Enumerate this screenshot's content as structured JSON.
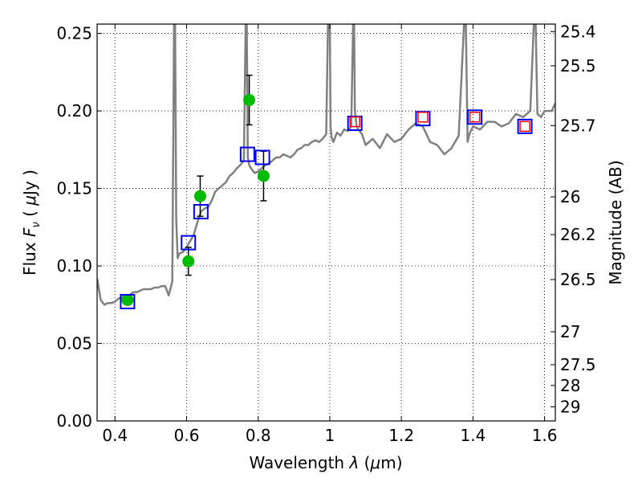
{
  "chart_data": {
    "type": "scatter",
    "title": "",
    "xlabel": "Wavelength  λ (μm)",
    "ylabel": "Flux  F_ν  ( μJy )",
    "ylabel_parts": {
      "prefix": "Flux  ",
      "symbol": "F",
      "subscript": "ν",
      "unit_open": "  ( ",
      "mu": "μ",
      "unit_rest": "Jy )"
    },
    "xlabel_parts": {
      "prefix": "Wavelength  ",
      "symbol": "λ",
      "unit_open": " (",
      "mu": "μ",
      "unit_rest": "m)"
    },
    "y2label": "Magnitude (AB)",
    "xlim": [
      0.35,
      1.63
    ],
    "ylim": [
      0.0,
      0.256
    ],
    "grid": true,
    "x_ticks": [
      {
        "value": 0.4,
        "label": "0.4"
      },
      {
        "value": 0.6,
        "label": "0.6"
      },
      {
        "value": 0.8,
        "label": "0.8"
      },
      {
        "value": 1.0,
        "label": "1"
      },
      {
        "value": 1.2,
        "label": "1.2"
      },
      {
        "value": 1.4,
        "label": "1.4"
      },
      {
        "value": 1.6,
        "label": "1.6"
      }
    ],
    "y_ticks": [
      {
        "value": 0.0,
        "label": "0.00"
      },
      {
        "value": 0.05,
        "label": "0.05"
      },
      {
        "value": 0.1,
        "label": "0.10"
      },
      {
        "value": 0.15,
        "label": "0.15"
      },
      {
        "value": 0.2,
        "label": "0.20"
      },
      {
        "value": 0.25,
        "label": "0.25"
      }
    ],
    "y2_ticks": [
      {
        "value": 25.4,
        "label": "25.4"
      },
      {
        "value": 25.5,
        "label": "25.5"
      },
      {
        "value": 25.7,
        "label": "25.7"
      },
      {
        "value": 26.0,
        "label": "26"
      },
      {
        "value": 26.2,
        "label": "26.2"
      },
      {
        "value": 26.5,
        "label": "26.5"
      },
      {
        "value": 27.0,
        "label": "27"
      },
      {
        "value": 27.5,
        "label": "27.5"
      },
      {
        "value": 28.0,
        "label": "28"
      },
      {
        "value": 29.0,
        "label": "29"
      }
    ],
    "series": [
      {
        "kind": "line",
        "color": "#808080",
        "x": [
          0.35,
          0.36,
          0.37,
          0.38,
          0.39,
          0.4,
          0.41,
          0.42,
          0.43,
          0.44,
          0.45,
          0.46,
          0.47,
          0.48,
          0.49,
          0.5,
          0.51,
          0.52,
          0.53,
          0.54,
          0.55,
          0.56,
          0.565,
          0.568,
          0.571,
          0.575,
          0.58,
          0.59,
          0.6,
          0.61,
          0.62,
          0.63,
          0.64,
          0.65,
          0.66,
          0.67,
          0.68,
          0.69,
          0.7,
          0.71,
          0.72,
          0.73,
          0.74,
          0.75,
          0.76,
          0.765,
          0.768,
          0.771,
          0.775,
          0.78,
          0.79,
          0.8,
          0.81,
          0.82,
          0.83,
          0.84,
          0.85,
          0.86,
          0.87,
          0.88,
          0.89,
          0.9,
          0.91,
          0.92,
          0.93,
          0.94,
          0.95,
          0.96,
          0.97,
          0.98,
          0.99,
          0.995,
          0.998,
          1.0,
          1.002,
          1.005,
          1.01,
          1.02,
          1.03,
          1.04,
          1.05,
          1.06,
          1.065,
          1.068,
          1.07,
          1.075,
          1.08,
          1.09,
          1.1,
          1.12,
          1.14,
          1.16,
          1.18,
          1.2,
          1.22,
          1.24,
          1.26,
          1.28,
          1.3,
          1.32,
          1.34,
          1.36,
          1.375,
          1.38,
          1.385,
          1.39,
          1.4,
          1.42,
          1.44,
          1.46,
          1.48,
          1.5,
          1.52,
          1.54,
          1.56,
          1.57,
          1.575,
          1.58,
          1.59,
          1.6,
          1.61,
          1.62,
          1.63
        ],
        "y": [
          0.092,
          0.078,
          0.075,
          0.076,
          0.076,
          0.077,
          0.079,
          0.08,
          0.08,
          0.081,
          0.083,
          0.083,
          0.084,
          0.085,
          0.085,
          0.085,
          0.086,
          0.086,
          0.087,
          0.087,
          0.081,
          0.09,
          0.256,
          0.256,
          0.13,
          0.105,
          0.108,
          0.109,
          0.112,
          0.116,
          0.12,
          0.128,
          0.135,
          0.137,
          0.138,
          0.142,
          0.148,
          0.15,
          0.152,
          0.154,
          0.158,
          0.16,
          0.163,
          0.165,
          0.168,
          0.256,
          0.256,
          0.17,
          0.165,
          0.163,
          0.16,
          0.161,
          0.163,
          0.165,
          0.166,
          0.168,
          0.17,
          0.17,
          0.172,
          0.171,
          0.17,
          0.172,
          0.175,
          0.176,
          0.178,
          0.178,
          0.18,
          0.181,
          0.18,
          0.182,
          0.185,
          0.256,
          0.256,
          0.256,
          0.19,
          0.183,
          0.18,
          0.186,
          0.184,
          0.188,
          0.187,
          0.19,
          0.256,
          0.256,
          0.2,
          0.19,
          0.188,
          0.185,
          0.178,
          0.182,
          0.176,
          0.185,
          0.18,
          0.182,
          0.188,
          0.192,
          0.19,
          0.18,
          0.178,
          0.172,
          0.176,
          0.184,
          0.256,
          0.256,
          0.18,
          0.185,
          0.19,
          0.188,
          0.193,
          0.193,
          0.19,
          0.192,
          0.198,
          0.196,
          0.2,
          0.256,
          0.256,
          0.198,
          0.196,
          0.2,
          0.2,
          0.2,
          0.205
        ]
      },
      {
        "kind": "errorbar",
        "marker": "circle",
        "color": "#00bb00",
        "x": [
          0.435,
          0.605,
          0.638,
          0.775,
          0.815
        ],
        "y": [
          0.078,
          0.103,
          0.145,
          0.207,
          0.158
        ],
        "yerr": [
          0.0,
          0.009,
          0.013,
          0.016,
          0.016
        ]
      },
      {
        "kind": "marker",
        "marker": "square",
        "color": "#0000ff",
        "x": [
          0.435,
          0.605,
          0.64,
          0.77,
          0.812,
          1.07,
          1.26,
          1.405,
          1.545
        ],
        "y": [
          0.077,
          0.115,
          0.135,
          0.172,
          0.17,
          0.192,
          0.195,
          0.196,
          0.19
        ]
      },
      {
        "kind": "marker",
        "marker": "square",
        "color": "#ff0000",
        "x": [
          1.07,
          1.26,
          1.405,
          1.545
        ],
        "y": [
          0.193,
          0.196,
          0.196,
          0.19
        ]
      }
    ]
  }
}
